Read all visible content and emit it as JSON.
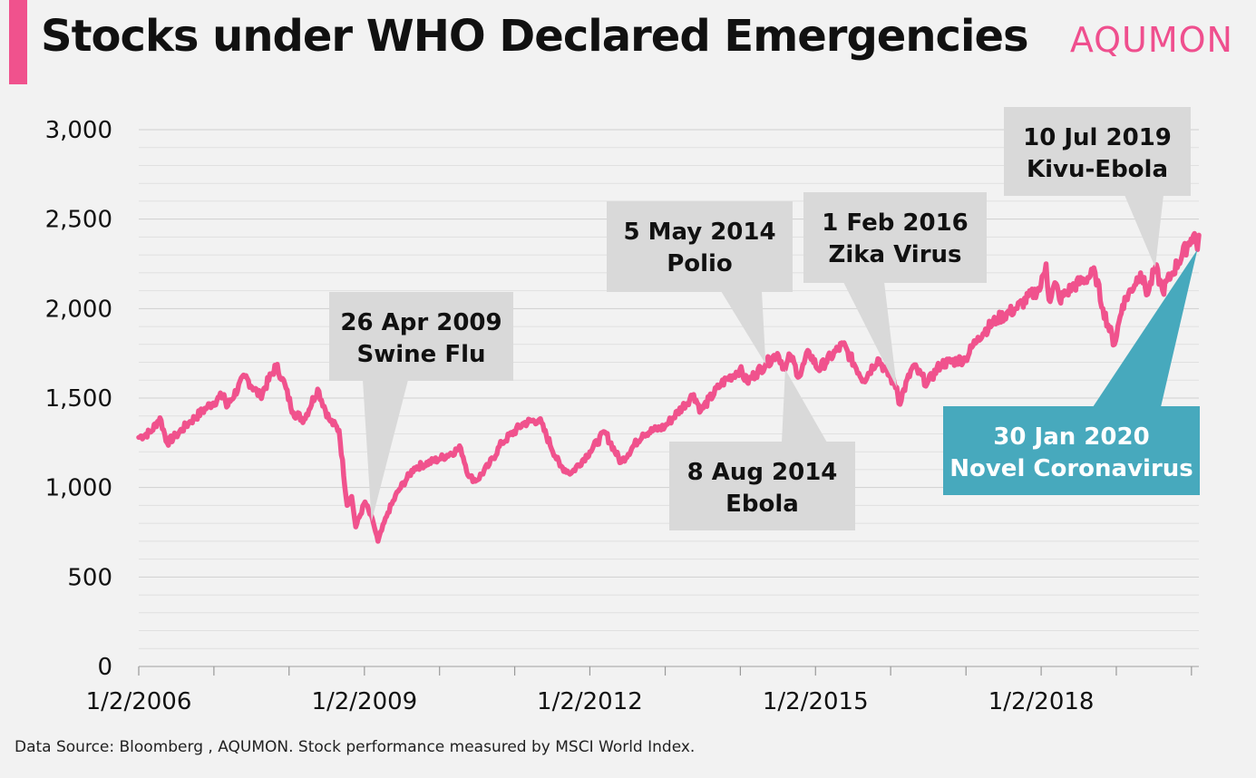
{
  "title": "Stocks under WHO Declared Emergencies",
  "logo": "AQUMON",
  "footer": "Data Source: Bloomberg , AQUMON. Stock performance measured by MSCI World Index.",
  "colors": {
    "line": "#f0528d",
    "callout": "#d9d9d9",
    "callout_highlight": "#47a9bd",
    "accent": "#f0528d"
  },
  "chart_data": {
    "type": "line",
    "x_ticks": [
      "1/2/2006",
      "1/2/2009",
      "1/2/2012",
      "1/2/2015",
      "1/2/2018"
    ],
    "y_ticks": [
      "0",
      "500",
      "1,000",
      "1,500",
      "2,000",
      "2,500",
      "3,000"
    ],
    "ylim": [
      0,
      3000
    ],
    "xlim": [
      "2006-01-02",
      "2020-02-07"
    ],
    "grid": true,
    "series": [
      {
        "color": "#f0528d",
        "points": [
          [
            "2006-01-02",
            1280
          ],
          [
            "2006-03-01",
            1310
          ],
          [
            "2006-04-15",
            1390
          ],
          [
            "2006-05-20",
            1250
          ],
          [
            "2006-07-01",
            1290
          ],
          [
            "2006-09-01",
            1360
          ],
          [
            "2006-12-01",
            1450
          ],
          [
            "2007-02-20",
            1520
          ],
          [
            "2007-03-05",
            1450
          ],
          [
            "2007-06-01",
            1620
          ],
          [
            "2007-08-15",
            1510
          ],
          [
            "2007-10-31",
            1680
          ],
          [
            "2007-12-01",
            1610
          ],
          [
            "2008-01-22",
            1420
          ],
          [
            "2008-03-15",
            1380
          ],
          [
            "2008-05-20",
            1550
          ],
          [
            "2008-07-15",
            1380
          ],
          [
            "2008-09-01",
            1320
          ],
          [
            "2008-10-10",
            900
          ],
          [
            "2008-11-01",
            950
          ],
          [
            "2008-11-21",
            780
          ],
          [
            "2009-01-05",
            920
          ],
          [
            "2009-02-15",
            800
          ],
          [
            "2009-03-09",
            700
          ],
          [
            "2009-04-26",
            860
          ],
          [
            "2009-06-15",
            980
          ],
          [
            "2009-09-01",
            1110
          ],
          [
            "2010-01-01",
            1160
          ],
          [
            "2010-04-15",
            1220
          ],
          [
            "2010-05-25",
            1060
          ],
          [
            "2010-07-01",
            1040
          ],
          [
            "2010-09-01",
            1130
          ],
          [
            "2010-11-01",
            1250
          ],
          [
            "2011-02-15",
            1360
          ],
          [
            "2011-05-01",
            1380
          ],
          [
            "2011-08-10",
            1120
          ],
          [
            "2011-10-03",
            1080
          ],
          [
            "2012-01-02",
            1200
          ],
          [
            "2012-03-15",
            1310
          ],
          [
            "2012-06-01",
            1140
          ],
          [
            "2012-09-15",
            1300
          ],
          [
            "2012-12-31",
            1340
          ],
          [
            "2013-05-20",
            1520
          ],
          [
            "2013-06-24",
            1430
          ],
          [
            "2013-10-01",
            1580
          ],
          [
            "2013-12-31",
            1660
          ],
          [
            "2014-02-03",
            1590
          ],
          [
            "2014-05-05",
            1690
          ],
          [
            "2014-07-01",
            1750
          ],
          [
            "2014-08-08",
            1660
          ],
          [
            "2014-09-01",
            1740
          ],
          [
            "2014-10-15",
            1620
          ],
          [
            "2014-12-01",
            1760
          ],
          [
            "2015-01-15",
            1660
          ],
          [
            "2015-05-15",
            1800
          ],
          [
            "2015-08-24",
            1600
          ],
          [
            "2015-11-01",
            1720
          ],
          [
            "2016-02-01",
            1560
          ],
          [
            "2016-02-11",
            1470
          ],
          [
            "2016-04-20",
            1680
          ],
          [
            "2016-06-27",
            1580
          ],
          [
            "2016-09-01",
            1690
          ],
          [
            "2016-12-31",
            1720
          ],
          [
            "2017-03-01",
            1840
          ],
          [
            "2017-06-01",
            1940
          ],
          [
            "2017-09-01",
            2000
          ],
          [
            "2017-12-31",
            2120
          ],
          [
            "2018-01-26",
            2250
          ],
          [
            "2018-02-09",
            2050
          ],
          [
            "2018-03-15",
            2140
          ],
          [
            "2018-04-01",
            2050
          ],
          [
            "2018-06-01",
            2120
          ],
          [
            "2018-09-21",
            2200
          ],
          [
            "2018-10-29",
            2000
          ],
          [
            "2018-12-24",
            1800
          ],
          [
            "2019-02-01",
            2020
          ],
          [
            "2019-04-30",
            2200
          ],
          [
            "2019-06-03",
            2080
          ],
          [
            "2019-07-10",
            2230
          ],
          [
            "2019-08-15",
            2100
          ],
          [
            "2019-10-01",
            2200
          ],
          [
            "2019-12-31",
            2390
          ],
          [
            "2020-01-17",
            2420
          ],
          [
            "2020-01-31",
            2330
          ],
          [
            "2020-02-07",
            2410
          ]
        ]
      }
    ],
    "annotations": [
      {
        "date_label": "26 Apr 2009",
        "event": "Swine Flu",
        "x": "2009-04-26",
        "y": 860,
        "highlight": false
      },
      {
        "date_label": "5 May 2014",
        "event": "Polio",
        "x": "2014-05-05",
        "y": 1690,
        "highlight": false
      },
      {
        "date_label": "8 Aug 2014",
        "event": "Ebola",
        "x": "2014-08-08",
        "y": 1660,
        "highlight": false
      },
      {
        "date_label": "1 Feb 2016",
        "event": "Zika Virus",
        "x": "2016-02-01",
        "y": 1560,
        "highlight": false
      },
      {
        "date_label": "10 Jul 2019",
        "event": "Kivu-Ebola",
        "x": "2019-07-10",
        "y": 2230,
        "highlight": false
      },
      {
        "date_label": "30 Jan 2020",
        "event": "Novel Coronavirus",
        "x": "2020-01-31",
        "y": 2330,
        "highlight": true
      }
    ]
  }
}
